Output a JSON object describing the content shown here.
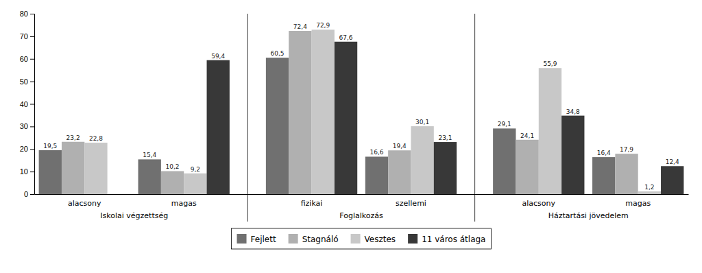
{
  "chart_data": {
    "type": "bar",
    "categories": [
      "alacsony",
      "magas",
      "fizikai",
      "szellemi",
      "alacsony",
      "magas"
    ],
    "category_groups": [
      "Iskolai végzettség",
      "Foglalkozás",
      "Háztartási jövedelem"
    ],
    "series": [
      {
        "name": "Fejlett",
        "color": "#707070",
        "values": [
          19.5,
          15.4,
          60.5,
          16.6,
          29.1,
          16.4
        ],
        "value_labels": [
          "19,5",
          "15,4",
          "60,5",
          "16,6",
          "29,1",
          "16,4"
        ]
      },
      {
        "name": "Stagnáló",
        "color": "#b0b0b0",
        "values": [
          23.2,
          10.2,
          72.4,
          19.4,
          24.1,
          17.9
        ],
        "value_labels": [
          "23,2",
          "10,2",
          "72,4",
          "19,4",
          "24,1",
          "17,9"
        ]
      },
      {
        "name": "Vesztes",
        "color": "#c8c8c8",
        "values": [
          22.8,
          9.2,
          72.9,
          30.1,
          55.9,
          1.2
        ],
        "value_labels": [
          "22,8",
          "9,2",
          "72,9",
          "30,1",
          "55,9",
          "1,2"
        ]
      },
      {
        "name": "11 város átlaga",
        "color": "#383838",
        "values": [
          null,
          59.4,
          67.6,
          23.1,
          34.8,
          12.4
        ],
        "value_labels": [
          null,
          "59,4",
          "67,6",
          "23,1",
          "34,8",
          "12,4"
        ]
      }
    ],
    "ylim": [
      0,
      80
    ],
    "yticks": [
      0,
      10,
      20,
      30,
      40,
      50,
      60,
      70,
      80
    ],
    "data_labels": true,
    "grid": false,
    "legend": "bottom"
  }
}
